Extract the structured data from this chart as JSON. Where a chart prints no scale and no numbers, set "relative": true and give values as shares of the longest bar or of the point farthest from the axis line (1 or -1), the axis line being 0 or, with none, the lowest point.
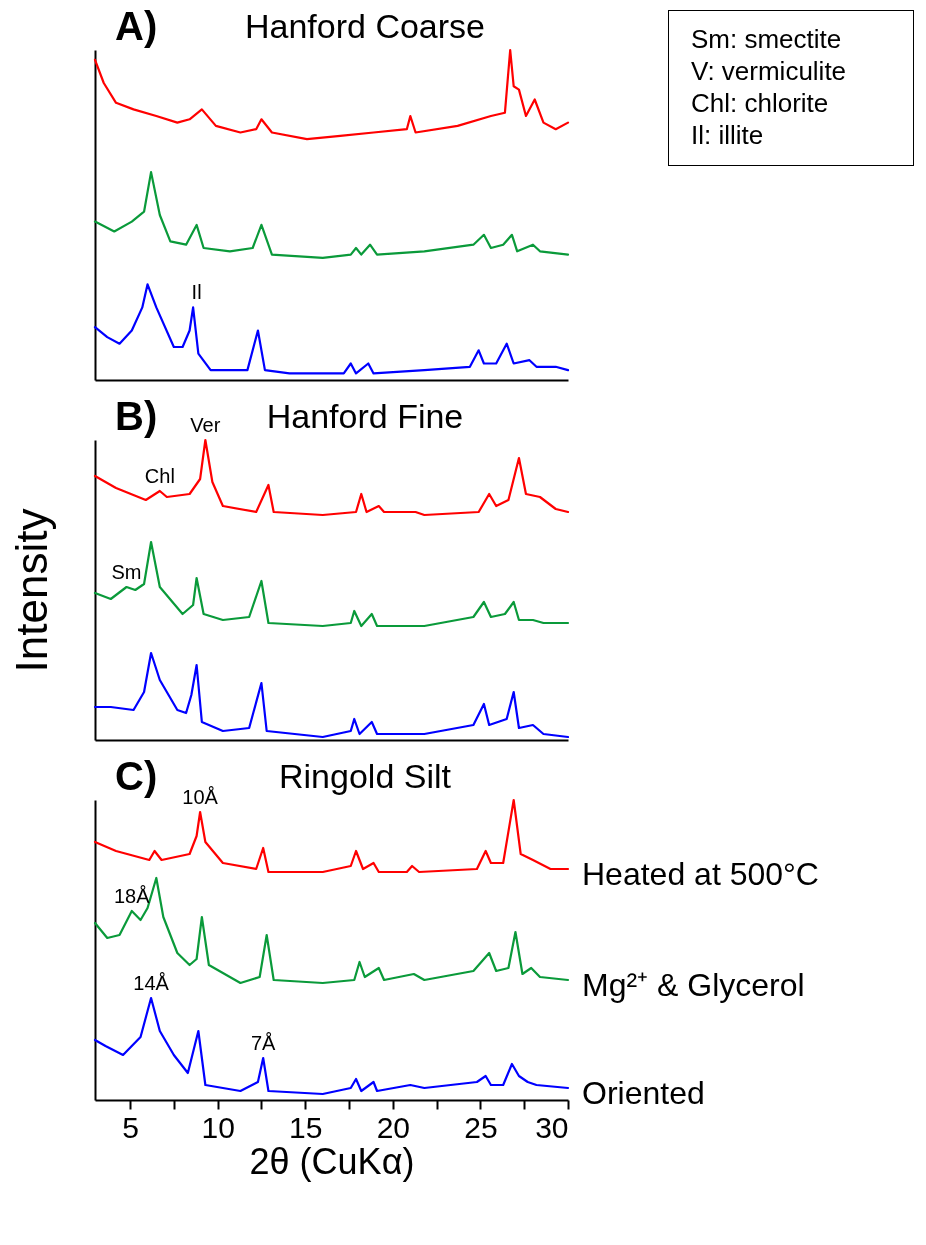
{
  "chart_data": [
    {
      "type": "line",
      "title": "Hanford Coarse",
      "relative": true,
      "xlim": [
        3,
        30
      ],
      "xticks": [
        5,
        10,
        15,
        20,
        25,
        30
      ],
      "tick_labels": false,
      "line_style": "solid",
      "annotations": [
        "A)",
        "Sm: smectite",
        "V: vermiculite",
        "Chl: chlorite",
        "Il: illite",
        {
          "text": "Il",
          "x": 8.8,
          "y": 0.22
        }
      ],
      "series": [
        {
          "color": "#ff0000",
          "x": [
            3.0,
            3.5,
            4.2,
            5.2,
            6.5,
            7.7,
            8.4,
            9.1,
            9.9,
            11.3,
            12.2,
            12.5,
            13.1,
            15.1,
            17.0,
            18.9,
            20.8,
            21.0,
            21.3,
            23.7,
            25.6,
            26.4,
            26.7,
            26.9,
            27.2,
            27.6,
            28.1,
            28.6,
            29.3,
            30.0
          ],
          "values": [
            0.97,
            0.9,
            0.84,
            0.82,
            0.8,
            0.78,
            0.79,
            0.82,
            0.77,
            0.75,
            0.76,
            0.79,
            0.75,
            0.73,
            0.74,
            0.75,
            0.76,
            0.8,
            0.75,
            0.77,
            0.8,
            0.81,
            1.0,
            0.89,
            0.88,
            0.8,
            0.85,
            0.78,
            0.76,
            0.78
          ]
        },
        {
          "color": "#0a9a3a",
          "x": [
            3.0,
            4.1,
            5.1,
            5.8,
            6.2,
            6.7,
            7.3,
            8.2,
            8.8,
            9.2,
            10.7,
            12.0,
            12.5,
            13.1,
            16.0,
            17.6,
            17.9,
            18.2,
            18.7,
            19.1,
            21.8,
            24.6,
            25.2,
            25.6,
            26.3,
            26.8,
            27.1,
            28.0,
            28.4,
            30.0
          ],
          "values": [
            0.48,
            0.45,
            0.48,
            0.51,
            0.63,
            0.5,
            0.42,
            0.41,
            0.47,
            0.4,
            0.39,
            0.4,
            0.47,
            0.38,
            0.37,
            0.38,
            0.4,
            0.38,
            0.41,
            0.38,
            0.39,
            0.41,
            0.44,
            0.4,
            0.41,
            0.44,
            0.39,
            0.41,
            0.39,
            0.38
          ]
        },
        {
          "color": "#0000ff",
          "x": [
            3.0,
            3.7,
            4.4,
            5.1,
            5.7,
            6.0,
            6.5,
            7.5,
            8.0,
            8.4,
            8.6,
            8.9,
            9.6,
            11.7,
            12.3,
            12.7,
            14.1,
            17.2,
            17.6,
            17.9,
            18.6,
            18.9,
            21.8,
            24.4,
            24.9,
            25.2,
            25.9,
            26.5,
            26.9,
            27.8,
            28.2,
            29.3,
            30.0
          ],
          "values": [
            0.16,
            0.13,
            0.11,
            0.15,
            0.22,
            0.29,
            0.22,
            0.1,
            0.1,
            0.15,
            0.22,
            0.08,
            0.03,
            0.03,
            0.15,
            0.03,
            0.02,
            0.02,
            0.05,
            0.02,
            0.05,
            0.02,
            0.03,
            0.04,
            0.09,
            0.05,
            0.05,
            0.11,
            0.05,
            0.06,
            0.04,
            0.04,
            0.03
          ]
        }
      ]
    },
    {
      "type": "line",
      "title": "Hanford Fine",
      "ylabel": "Intensity",
      "relative": true,
      "xlim": [
        3,
        30
      ],
      "xticks": [
        5,
        10,
        15,
        20,
        25,
        30
      ],
      "tick_labels": false,
      "line_style": "solid",
      "annotations": [
        "B)",
        {
          "text": "Ver",
          "x": 9.3,
          "y": 1.0
        },
        {
          "text": "Chl",
          "x": 6.7,
          "y": 0.83
        },
        {
          "text": "Sm",
          "x": 4.8,
          "y": 0.51
        }
      ],
      "series": [
        {
          "color": "#ff0000",
          "x": [
            3.0,
            4.2,
            5.9,
            6.7,
            7.1,
            8.4,
            9.0,
            9.3,
            9.7,
            10.3,
            12.2,
            12.9,
            13.2,
            16.0,
            17.9,
            18.2,
            18.5,
            19.2,
            19.5,
            21.3,
            21.8,
            24.9,
            25.5,
            25.9,
            26.6,
            27.2,
            27.6,
            28.4,
            29.3,
            30.0
          ],
          "values": [
            0.88,
            0.84,
            0.8,
            0.83,
            0.81,
            0.82,
            0.87,
            1.0,
            0.86,
            0.78,
            0.76,
            0.85,
            0.76,
            0.75,
            0.76,
            0.82,
            0.76,
            0.78,
            0.76,
            0.76,
            0.75,
            0.76,
            0.82,
            0.78,
            0.8,
            0.94,
            0.82,
            0.81,
            0.77,
            0.76
          ]
        },
        {
          "color": "#0a9a3a",
          "x": [
            3.0,
            3.9,
            4.8,
            5.3,
            5.8,
            6.2,
            6.7,
            8.0,
            8.6,
            8.8,
            9.2,
            10.3,
            11.8,
            12.5,
            12.9,
            16.0,
            17.6,
            17.8,
            18.2,
            18.8,
            19.1,
            21.8,
            24.6,
            25.2,
            25.6,
            26.4,
            26.9,
            27.2,
            28.0,
            28.6,
            30.0
          ],
          "values": [
            0.49,
            0.47,
            0.51,
            0.5,
            0.52,
            0.66,
            0.51,
            0.42,
            0.45,
            0.54,
            0.42,
            0.4,
            0.41,
            0.53,
            0.39,
            0.38,
            0.39,
            0.43,
            0.38,
            0.42,
            0.38,
            0.38,
            0.41,
            0.46,
            0.41,
            0.42,
            0.46,
            0.4,
            0.4,
            0.39,
            0.39
          ]
        },
        {
          "color": "#0000ff",
          "x": [
            3.0,
            3.9,
            5.2,
            5.8,
            6.2,
            6.7,
            7.7,
            8.2,
            8.5,
            8.8,
            9.1,
            10.3,
            11.8,
            12.5,
            12.8,
            16.0,
            17.6,
            17.8,
            18.1,
            18.8,
            19.1,
            21.8,
            24.6,
            25.2,
            25.5,
            26.5,
            26.9,
            27.2,
            28.0,
            28.6,
            30.0
          ],
          "values": [
            0.11,
            0.11,
            0.1,
            0.16,
            0.29,
            0.2,
            0.1,
            0.09,
            0.15,
            0.25,
            0.06,
            0.03,
            0.04,
            0.19,
            0.03,
            0.01,
            0.03,
            0.07,
            0.02,
            0.06,
            0.02,
            0.02,
            0.05,
            0.12,
            0.05,
            0.07,
            0.16,
            0.04,
            0.05,
            0.02,
            0.01
          ]
        }
      ]
    },
    {
      "type": "line",
      "title": "Ringold Silt",
      "xlabel": "2θ (CuKα)",
      "relative": true,
      "xlim": [
        3,
        30
      ],
      "xticks": [
        5,
        {
          "value": 7.5,
          "label": null
        },
        10,
        {
          "value": 12.5,
          "label": null
        },
        15,
        {
          "value": 17.5,
          "label": null
        },
        20,
        {
          "value": 22.5,
          "label": null
        },
        25,
        {
          "value": 27.5,
          "label": null
        },
        30
      ],
      "tick_labels": "x",
      "line_style": "solid",
      "annotations": [
        "C)",
        {
          "text": "10Å",
          "x": 9.0,
          "y": 0.96
        },
        {
          "text": "18Å",
          "x": 5.1,
          "y": 0.63
        },
        {
          "text": "14Å",
          "x": 6.2,
          "y": 0.34
        },
        {
          "text": "7Å",
          "x": 12.6,
          "y": 0.14
        }
      ],
      "series": [
        {
          "name": "Heated at 500°C",
          "color": "#ff0000",
          "x": [
            3.0,
            4.2,
            6.1,
            6.4,
            6.8,
            8.4,
            8.8,
            9.0,
            9.3,
            10.3,
            12.2,
            12.6,
            12.9,
            16.0,
            17.6,
            17.9,
            18.3,
            18.9,
            19.2,
            20.8,
            21.1,
            21.5,
            24.8,
            25.3,
            25.6,
            26.3,
            26.9,
            27.3,
            28.0,
            29.0,
            30.0
          ],
          "values": [
            0.86,
            0.83,
            0.8,
            0.83,
            0.8,
            0.82,
            0.88,
            0.96,
            0.86,
            0.79,
            0.77,
            0.84,
            0.76,
            0.76,
            0.78,
            0.83,
            0.77,
            0.79,
            0.76,
            0.76,
            0.78,
            0.76,
            0.77,
            0.83,
            0.79,
            0.79,
            1.0,
            0.82,
            0.8,
            0.77,
            0.77
          ]
        },
        {
          "name": "Mg²⁺ & Glycerol",
          "color": "#0a9a3a",
          "x": [
            3.0,
            3.7,
            4.4,
            5.1,
            5.6,
            6.0,
            6.5,
            6.9,
            7.7,
            8.4,
            8.8,
            9.1,
            9.5,
            11.3,
            12.4,
            12.8,
            13.2,
            16.0,
            17.8,
            18.1,
            18.4,
            19.2,
            19.5,
            21.2,
            21.8,
            24.6,
            25.5,
            25.9,
            26.6,
            27.0,
            27.4,
            27.9,
            28.4,
            30.0
          ],
          "values": [
            0.59,
            0.54,
            0.55,
            0.63,
            0.6,
            0.64,
            0.74,
            0.61,
            0.49,
            0.45,
            0.47,
            0.61,
            0.45,
            0.39,
            0.41,
            0.55,
            0.4,
            0.39,
            0.4,
            0.46,
            0.41,
            0.44,
            0.4,
            0.42,
            0.4,
            0.43,
            0.49,
            0.43,
            0.44,
            0.56,
            0.42,
            0.44,
            0.41,
            0.4
          ]
        },
        {
          "name": "Oriented",
          "color": "#0000ff",
          "x": [
            3.0,
            3.6,
            4.6,
            5.6,
            6.2,
            6.7,
            7.5,
            8.3,
            8.9,
            9.3,
            11.3,
            12.3,
            12.6,
            12.9,
            16.0,
            17.6,
            17.9,
            18.2,
            18.9,
            19.1,
            21.0,
            21.8,
            24.8,
            25.3,
            25.6,
            26.3,
            26.8,
            27.2,
            27.7,
            28.2,
            30.0
          ],
          "values": [
            0.2,
            0.18,
            0.15,
            0.21,
            0.34,
            0.23,
            0.15,
            0.09,
            0.23,
            0.05,
            0.03,
            0.06,
            0.14,
            0.03,
            0.02,
            0.04,
            0.07,
            0.03,
            0.06,
            0.03,
            0.05,
            0.04,
            0.06,
            0.08,
            0.05,
            0.05,
            0.12,
            0.08,
            0.06,
            0.05,
            0.04
          ]
        }
      ]
    }
  ]
}
